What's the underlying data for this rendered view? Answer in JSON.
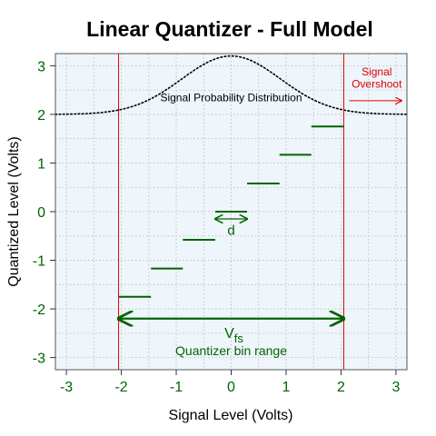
{
  "chart_data": {
    "type": "line",
    "title": "Linear Quantizer - Full Model",
    "xlabel": "Signal Level (Volts)",
    "ylabel": "Quantized Level (Volts)",
    "xlim": [
      -3.2,
      3.2
    ],
    "ylim": [
      -3.25,
      3.25
    ],
    "xticks": [
      -3,
      -2,
      -1,
      0,
      1,
      2,
      3
    ],
    "yticks": [
      -3,
      -2,
      -1,
      0,
      1,
      2,
      3
    ],
    "grid": true,
    "quantizer_range": [
      -2.05,
      2.05
    ],
    "steps": [
      {
        "x0": -2.05,
        "x1": -1.46,
        "y": -1.75
      },
      {
        "x0": -1.46,
        "x1": -0.88,
        "y": -1.17
      },
      {
        "x0": -0.88,
        "x1": -0.29,
        "y": -0.58
      },
      {
        "x0": -0.29,
        "x1": 0.29,
        "y": 0.0
      },
      {
        "x0": 0.29,
        "x1": 0.88,
        "y": 0.58
      },
      {
        "x0": 0.88,
        "x1": 1.46,
        "y": 1.17
      },
      {
        "x0": 1.46,
        "x1": 2.05,
        "y": 1.75
      }
    ],
    "distribution": {
      "baseline": 2.0,
      "peak": 3.2,
      "center": 0,
      "sigma": 0.9
    },
    "annotations": {
      "distribution_label": "Signal Probability Distribution",
      "overshoot_line1": "Signal",
      "overshoot_line2": "Overshoot",
      "step_width_label": "d",
      "vfs_main": "V",
      "vfs_sub": "fs",
      "bin_range_label": "Quantizer bin range"
    },
    "colors": {
      "step": "#006400",
      "limit": "#e00000",
      "panel_bg": "#eef5fb",
      "grid": "#b8b8b8",
      "distribution": "#000000"
    }
  }
}
